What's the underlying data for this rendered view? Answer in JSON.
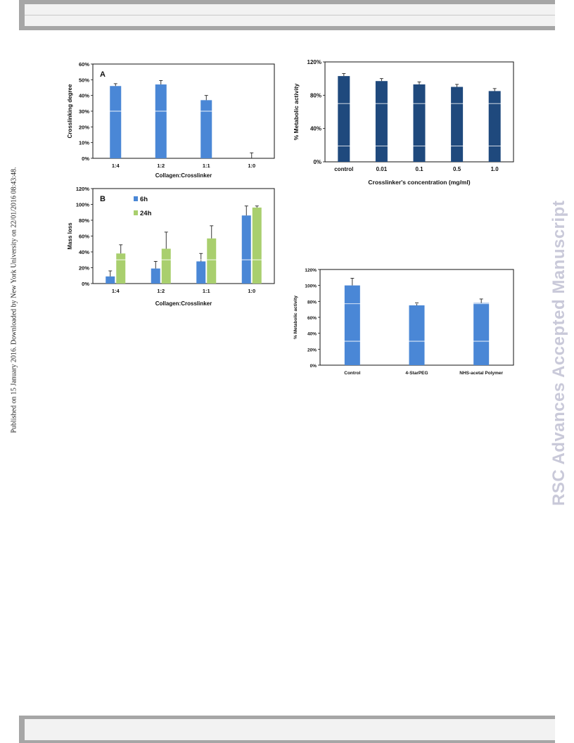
{
  "side_note": "Published on 15 January 2016. Downloaded by New York University on 22/01/2016 08:43:48.",
  "watermark": "RSC Advances Accepted Manuscript",
  "colors": {
    "blue": "#4a87d6",
    "dark_blue": "#1f497d",
    "green": "#a9cf6e",
    "frame": "#111111"
  },
  "chart_data": [
    {
      "id": "A",
      "type": "bar",
      "panel_label": "A",
      "categories": [
        "1:4",
        "1:2",
        "1:1",
        "1:0"
      ],
      "values": [
        46,
        47,
        37,
        0
      ],
      "errors": [
        1.5,
        2.5,
        3,
        3.5
      ],
      "yticks": [
        "0%",
        "10%",
        "20%",
        "30%",
        "40%",
        "50%",
        "60%"
      ],
      "ylim": [
        0,
        60
      ],
      "xlabel": "Collagen:Crosslinker",
      "ylabel": "Crosslinking degree",
      "grid": true
    },
    {
      "id": "B",
      "type": "bar",
      "panel_label": "B",
      "categories": [
        "1:4",
        "1:2",
        "1:1",
        "1:0"
      ],
      "series": [
        {
          "name": "6h",
          "values": [
            9,
            19,
            28,
            86
          ],
          "errors": [
            7,
            9,
            10,
            12
          ]
        },
        {
          "name": "24h",
          "values": [
            38,
            44,
            57,
            96
          ],
          "errors": [
            11,
            21,
            16,
            2
          ]
        }
      ],
      "yticks": [
        "0%",
        "20%",
        "40%",
        "60%",
        "80%",
        "100%",
        "120%"
      ],
      "ylim": [
        0,
        120
      ],
      "xlabel": "Collagen:Crosslinker",
      "ylabel": "Mass loss",
      "legend": "top-left",
      "grid": true
    },
    {
      "id": "C",
      "type": "bar",
      "categories": [
        "control",
        "0.01",
        "0.1",
        "0.5",
        "1.0"
      ],
      "values": [
        103,
        97,
        93,
        90,
        85
      ],
      "errors": [
        3,
        3,
        3,
        3,
        3
      ],
      "yticks": [
        "0%",
        "40%",
        "80%",
        "120%"
      ],
      "ylim": [
        0,
        120
      ],
      "xlabel": "Crosslinker's concentration (mg/ml)",
      "ylabel": "% Metabolic activity",
      "grid": true
    },
    {
      "id": "D",
      "type": "bar",
      "categories": [
        "Control",
        "4-StarPEG",
        "NHS-acetal Polymer"
      ],
      "values": [
        100,
        75,
        78
      ],
      "errors": [
        9,
        3,
        5
      ],
      "yticks": [
        "0%",
        "20%",
        "40%",
        "60%",
        "80%",
        "100%",
        "120%"
      ],
      "ylim": [
        0,
        120
      ],
      "xlabel": "",
      "ylabel": "% Metabolic activity",
      "grid": true
    }
  ]
}
